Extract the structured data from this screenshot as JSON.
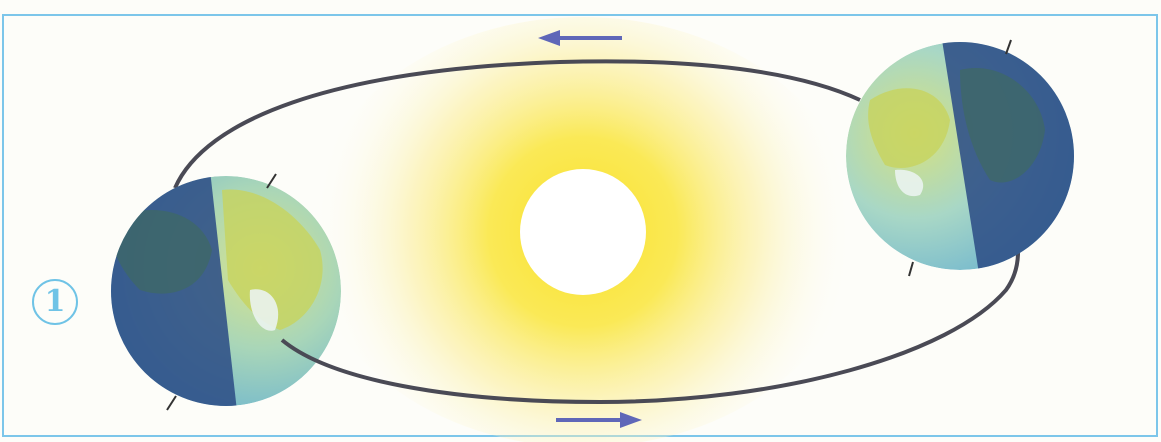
{
  "figure": {
    "number_label": "1"
  },
  "colors": {
    "frame": "#7cc6ea",
    "orbit": "#4a4a55",
    "arrow": "#5f67b8",
    "sun_core": "#ffffff",
    "sun_glow": "#f7e23a",
    "earth_day_land": "#c9d66a",
    "earth_day_ocean": "#9fd4dc",
    "earth_night": "#2d4f86",
    "number_badge": "#6fc3e6"
  },
  "elements": {
    "sun": "sun",
    "orbit": "elliptical-orbit-path",
    "earths": [
      "earth-left",
      "earth-right"
    ],
    "arrows": [
      "orbit-arrow-top-pointing-left",
      "orbit-arrow-bottom-pointing-right"
    ]
  }
}
